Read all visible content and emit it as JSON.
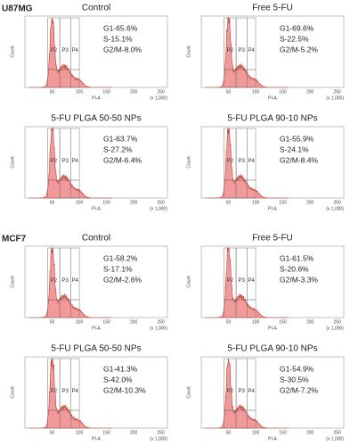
{
  "groups": [
    {
      "label": "U87MG",
      "panels": [
        {
          "title": "Control",
          "stats": [
            "G1-65.6%",
            "S-15.1%",
            "G2/M-8.0%"
          ]
        },
        {
          "title": "Free 5-FU",
          "stats": [
            "G1-69.6%",
            "S-22.5%",
            "G2/M-5.2%"
          ]
        },
        {
          "title": "5-FU PLGA 50-50 NPs",
          "stats": [
            "G1-63.7%",
            "S-27.2%",
            "G2/M-6.4%"
          ]
        },
        {
          "title": "5-FU PLGA 90-10 NPs",
          "stats": [
            "G1-55.9%",
            "S-24.1%",
            "G2/M-8.4%"
          ]
        }
      ]
    },
    {
      "label": "MCF7",
      "panels": [
        {
          "title": "Control",
          "stats": [
            "G1-58.2%",
            "S-17.1%",
            "G2/M-2.6%"
          ]
        },
        {
          "title": "Free 5-FU",
          "stats": [
            "G1-61.5%",
            "S-20.6%",
            "G2/M-3.3%"
          ]
        },
        {
          "title": "5-FU PLGA 50-50 NPs",
          "stats": [
            "G1-41.3%",
            "S-42.0%",
            "G2/M-10.3%"
          ]
        },
        {
          "title": "5-FU PLGA 90-10 NPs",
          "stats": [
            "G1-54.9%",
            "S-30.5%",
            "G2/M-7.2%"
          ]
        }
      ]
    }
  ],
  "y_label": "Count",
  "x_label": "PI-A",
  "x_unit": "(x 1,000)",
  "gates": [
    "P2",
    "P3",
    "P4"
  ],
  "xticks": [
    "50",
    "100",
    "150",
    "200",
    "250"
  ]
}
